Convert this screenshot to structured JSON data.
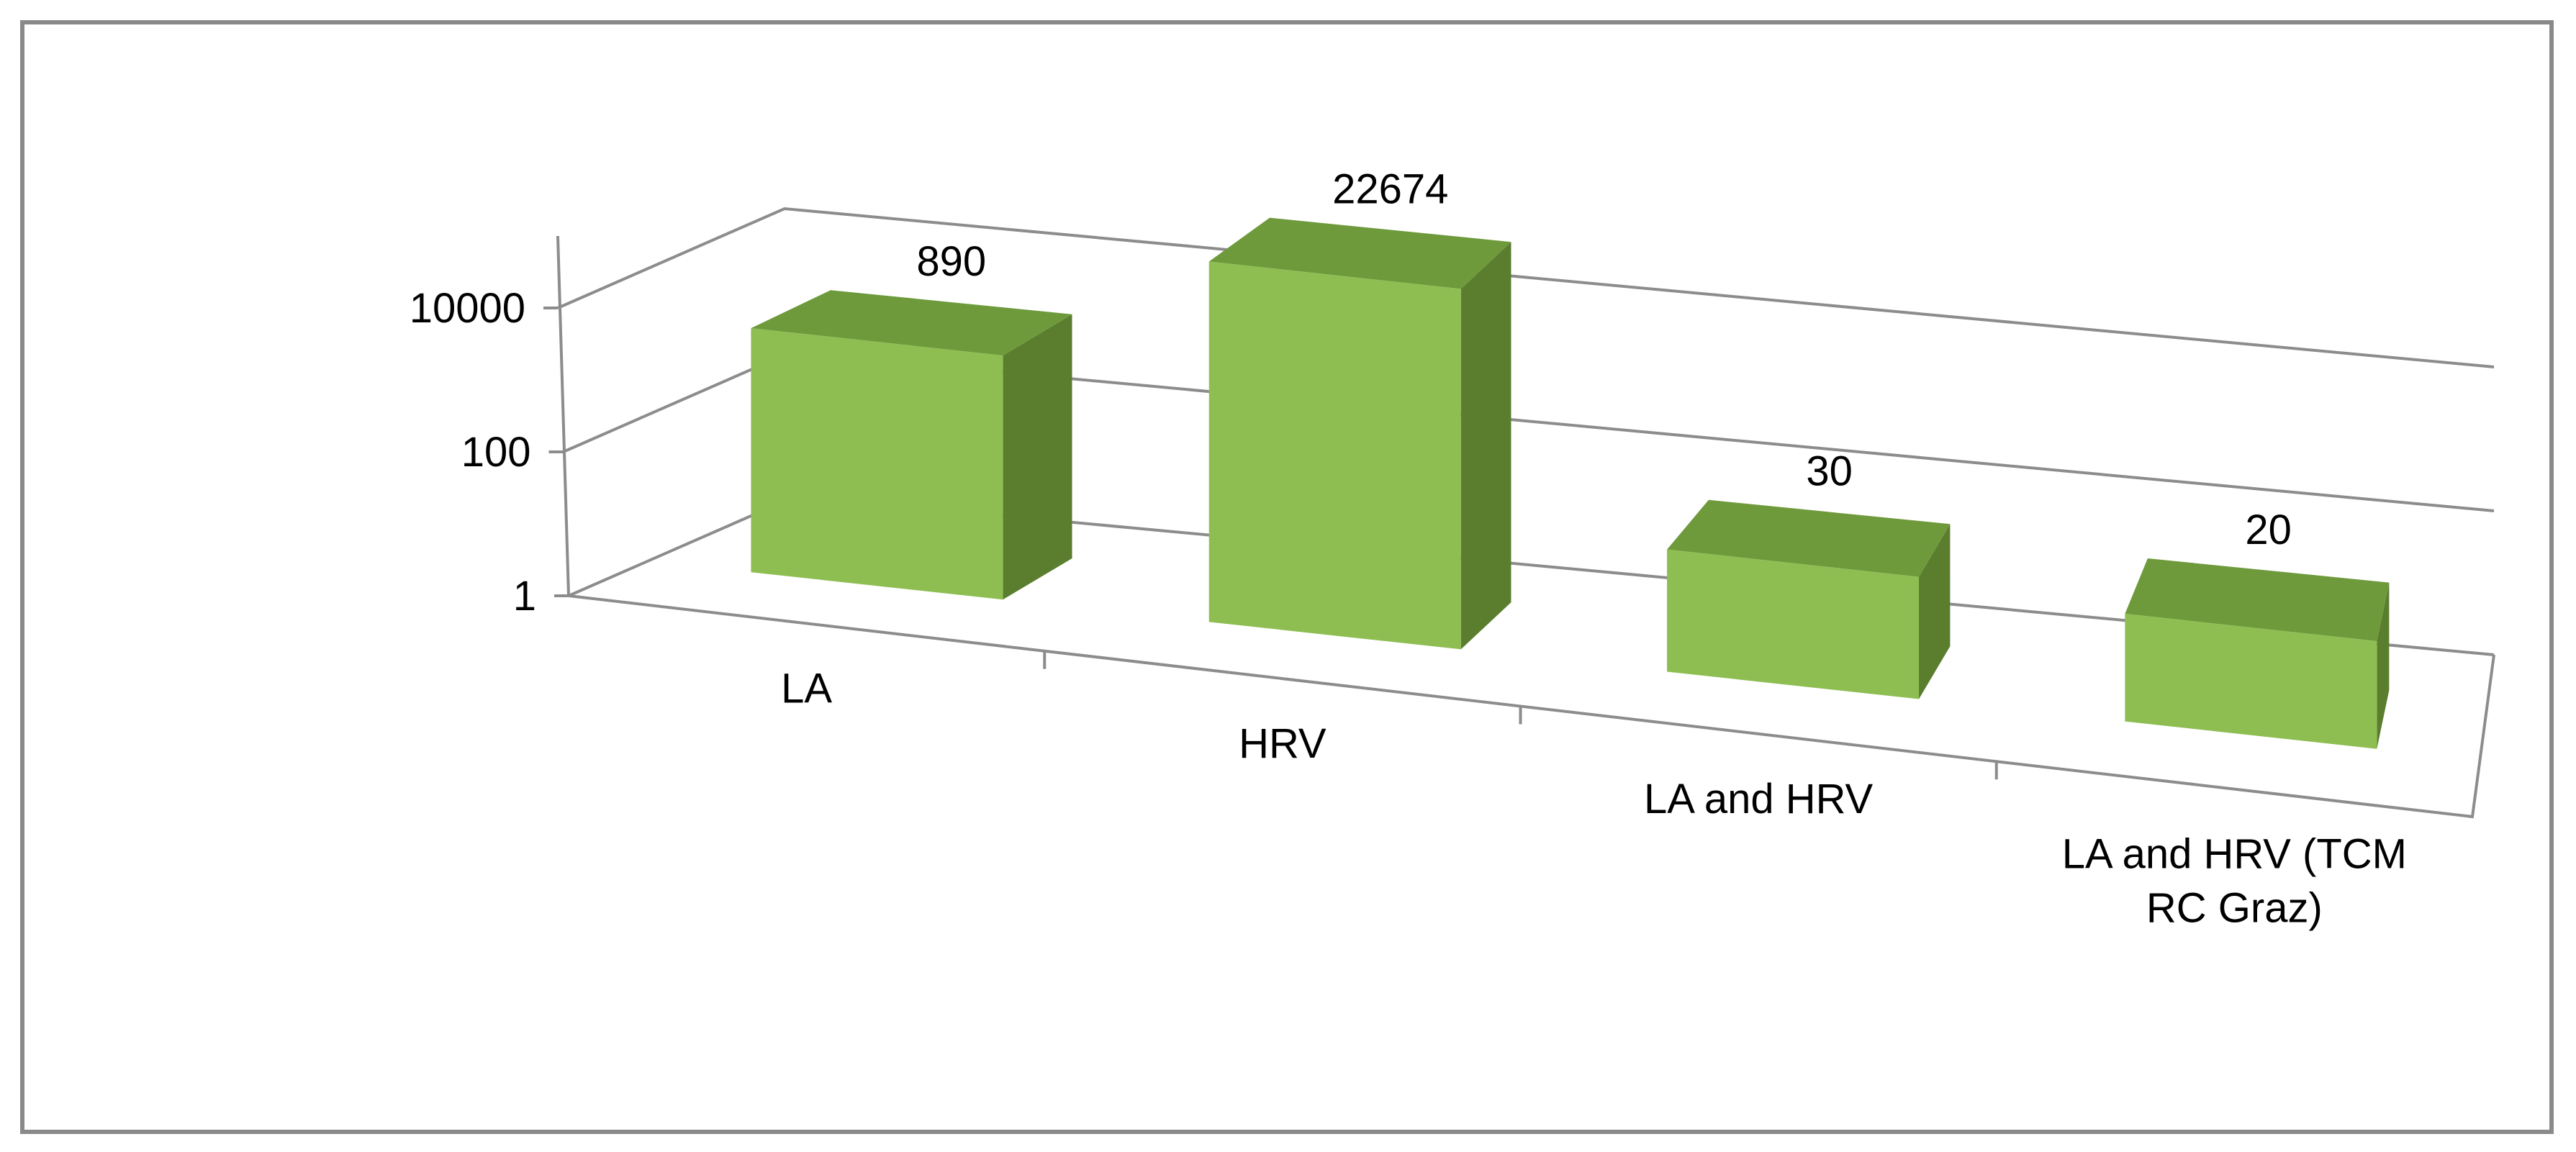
{
  "chart_data": {
    "type": "bar",
    "subtype": "3d-column",
    "title": "",
    "xlabel": "",
    "ylabel": "",
    "y_scale": "log",
    "ylim": [
      1,
      10000
    ],
    "y_ticks": [
      1,
      100,
      10000
    ],
    "y_tick_labels": [
      "1",
      "100",
      "10000"
    ],
    "categories": [
      "LA",
      "HRV",
      "LA and HRV",
      "LA and HRV (TCM\nRC Graz)"
    ],
    "category_label_lines": [
      [
        "LA"
      ],
      [
        "HRV"
      ],
      [
        "LA and HRV"
      ],
      [
        "LA and HRV (TCM",
        "RC Graz)"
      ]
    ],
    "values": [
      890,
      22674,
      30,
      20
    ],
    "data_labels": [
      "890",
      "22674",
      "30",
      "20"
    ],
    "grid": true,
    "legend": "none",
    "colors": {
      "bar_front": "#8ebe52",
      "bar_top": "#6e9a3c",
      "bar_side": "#5a7e2e",
      "axis": "#8c8c8c",
      "frame": "#8a8a8a"
    }
  }
}
